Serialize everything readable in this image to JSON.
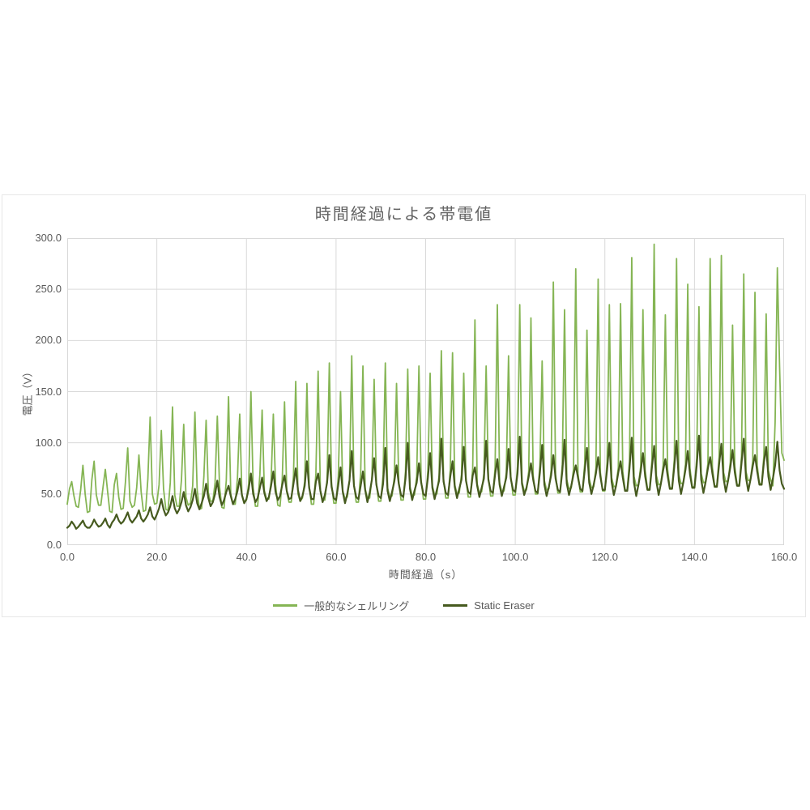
{
  "page_background": "#ffffff",
  "text_color": "#595959",
  "grid_color": "#d9d9d9",
  "chart_data": {
    "type": "line",
    "title": "時間経過による帯電値",
    "xlabel": "時間経過（s）",
    "ylabel": "電圧（V）",
    "xlim": [
      0,
      160
    ],
    "ylim": [
      0,
      300
    ],
    "x_tick_labels": [
      "0.0",
      "20.0",
      "40.0",
      "60.0",
      "80.0",
      "100.0",
      "120.0",
      "140.0",
      "160.0"
    ],
    "y_tick_labels": [
      "0.0",
      "50.0",
      "100.0",
      "150.0",
      "200.0",
      "250.0",
      "300.0"
    ],
    "grid": true,
    "legend_position": "bottom",
    "x_start": 0,
    "x_step": 0.5,
    "series": [
      {
        "name": "一般的なシェルリング",
        "color": "#85b554",
        "stroke_width": 1.8,
        "values": [
          40,
          55,
          62,
          48,
          38,
          37,
          54,
          78,
          50,
          32,
          33,
          64,
          82,
          49,
          39,
          39,
          57,
          74,
          53,
          33,
          32,
          59,
          70,
          47,
          35,
          36,
          62,
          95,
          43,
          37,
          39,
          56,
          88,
          52,
          33,
          34,
          65,
          125,
          50,
          40,
          41,
          59,
          112,
          55,
          35,
          34,
          61,
          135,
          49,
          38,
          38,
          64,
          118,
          47,
          39,
          41,
          58,
          130,
          54,
          35,
          36,
          67,
          122,
          51,
          43,
          43,
          61,
          126,
          57,
          37,
          36,
          63,
          145,
          50,
          40,
          40,
          66,
          128,
          48,
          41,
          44,
          60,
          150,
          56,
          38,
          38,
          69,
          132,
          53,
          45,
          45,
          62,
          128,
          59,
          39,
          38,
          65,
          140,
          52,
          42,
          42,
          68,
          160,
          50,
          43,
          46,
          62,
          158,
          58,
          40,
          40,
          70,
          170,
          54,
          44,
          44,
          64,
          178,
          60,
          41,
          41,
          67,
          150,
          53,
          45,
          47,
          63,
          185,
          59,
          42,
          42,
          71,
          175,
          55,
          46,
          46,
          65,
          162,
          61,
          43,
          43,
          69,
          178,
          56,
          47,
          48,
          66,
          158,
          62,
          44,
          44,
          72,
          172,
          57,
          48,
          49,
          67,
          175,
          63,
          45,
          45,
          73,
          168,
          58,
          49,
          50,
          68,
          190,
          64,
          46,
          46,
          74,
          188,
          59,
          50,
          51,
          69,
          168,
          65,
          47,
          47,
          75,
          220,
          60,
          51,
          52,
          70,
          175,
          66,
          48,
          48,
          76,
          235,
          61,
          52,
          53,
          71,
          185,
          67,
          49,
          49,
          77,
          235,
          62,
          53,
          54,
          72,
          222,
          68,
          50,
          50,
          78,
          180,
          63,
          54,
          55,
          73,
          257,
          69,
          51,
          51,
          79,
          230,
          64,
          55,
          56,
          74,
          270,
          70,
          52,
          52,
          80,
          210,
          65,
          56,
          57,
          75,
          260,
          71,
          53,
          53,
          81,
          235,
          66,
          57,
          58,
          76,
          236,
          72,
          54,
          54,
          82,
          281,
          67,
          58,
          59,
          77,
          230,
          73,
          55,
          55,
          83,
          294,
          68,
          59,
          60,
          78,
          225,
          74,
          56,
          56,
          84,
          280,
          69,
          60,
          61,
          79,
          255,
          75,
          57,
          57,
          85,
          233,
          70,
          61,
          62,
          80,
          280,
          76,
          58,
          58,
          86,
          283,
          71,
          62,
          63,
          81,
          215,
          77,
          59,
          59,
          87,
          265,
          72,
          63,
          64,
          82,
          247,
          78,
          60,
          60,
          88,
          226,
          73,
          64,
          58,
          120,
          271,
          174,
          90,
          83
        ]
      },
      {
        "name": "Static Eraser",
        "color": "#465a1f",
        "stroke_width": 2.2,
        "values": [
          17,
          19,
          23,
          20,
          16,
          18,
          21,
          24,
          19,
          17,
          17,
          20,
          25,
          21,
          18,
          19,
          22,
          26,
          20,
          17,
          22,
          25,
          30,
          24,
          21,
          23,
          27,
          32,
          25,
          22,
          25,
          28,
          34,
          26,
          23,
          26,
          30,
          37,
          28,
          25,
          30,
          36,
          45,
          35,
          29,
          32,
          38,
          48,
          36,
          31,
          35,
          42,
          52,
          39,
          33,
          37,
          44,
          55,
          41,
          35,
          41,
          48,
          60,
          46,
          38,
          42,
          50,
          63,
          47,
          39,
          44,
          52,
          58,
          48,
          40,
          45,
          53,
          65,
          49,
          41,
          45,
          55,
          70,
          50,
          42,
          46,
          56,
          66,
          51,
          43,
          47,
          58,
          72,
          52,
          44,
          48,
          59,
          68,
          53,
          45,
          46,
          60,
          75,
          54,
          43,
          48,
          58,
          82,
          56,
          45,
          45,
          62,
          70,
          53,
          42,
          49,
          61,
          88,
          57,
          46,
          44,
          59,
          76,
          52,
          41,
          50,
          63,
          92,
          58,
          47,
          45,
          58,
          72,
          54,
          42,
          51,
          64,
          85,
          59,
          48,
          46,
          60,
          95,
          53,
          43,
          52,
          62,
          78,
          60,
          49,
          47,
          65,
          100,
          55,
          44,
          53,
          61,
          80,
          61,
          50,
          48,
          66,
          90,
          56,
          45,
          54,
          63,
          104,
          62,
          51,
          49,
          67,
          82,
          57,
          46,
          55,
          64,
          96,
          63,
          52,
          50,
          68,
          76,
          58,
          47,
          56,
          65,
          102,
          64,
          53,
          51,
          69,
          84,
          59,
          48,
          57,
          66,
          94,
          65,
          54,
          52,
          70,
          106,
          60,
          49,
          56,
          67,
          80,
          64,
          53,
          51,
          71,
          98,
          59,
          48,
          57,
          68,
          88,
          65,
          54,
          52,
          72,
          103,
          60,
          49,
          58,
          69,
          78,
          66,
          55,
          53,
          73,
          95,
          61,
          50,
          59,
          70,
          86,
          67,
          54,
          54,
          74,
          100,
          62,
          49,
          58,
          71,
          82,
          66,
          53,
          53,
          75,
          105,
          61,
          48,
          59,
          72,
          90,
          67,
          54,
          54,
          76,
          97,
          62,
          49,
          60,
          73,
          84,
          68,
          55,
          55,
          77,
          102,
          63,
          50,
          61,
          74,
          92,
          69,
          56,
          56,
          78,
          107,
          64,
          51,
          62,
          75,
          86,
          70,
          57,
          57,
          79,
          99,
          65,
          52,
          63,
          76,
          93,
          71,
          58,
          58,
          80,
          104,
          66,
          53,
          64,
          77,
          88,
          72,
          59,
          59,
          81,
          96,
          67,
          54,
          65,
          78,
          101,
          73,
          60,
          55
        ]
      }
    ]
  }
}
